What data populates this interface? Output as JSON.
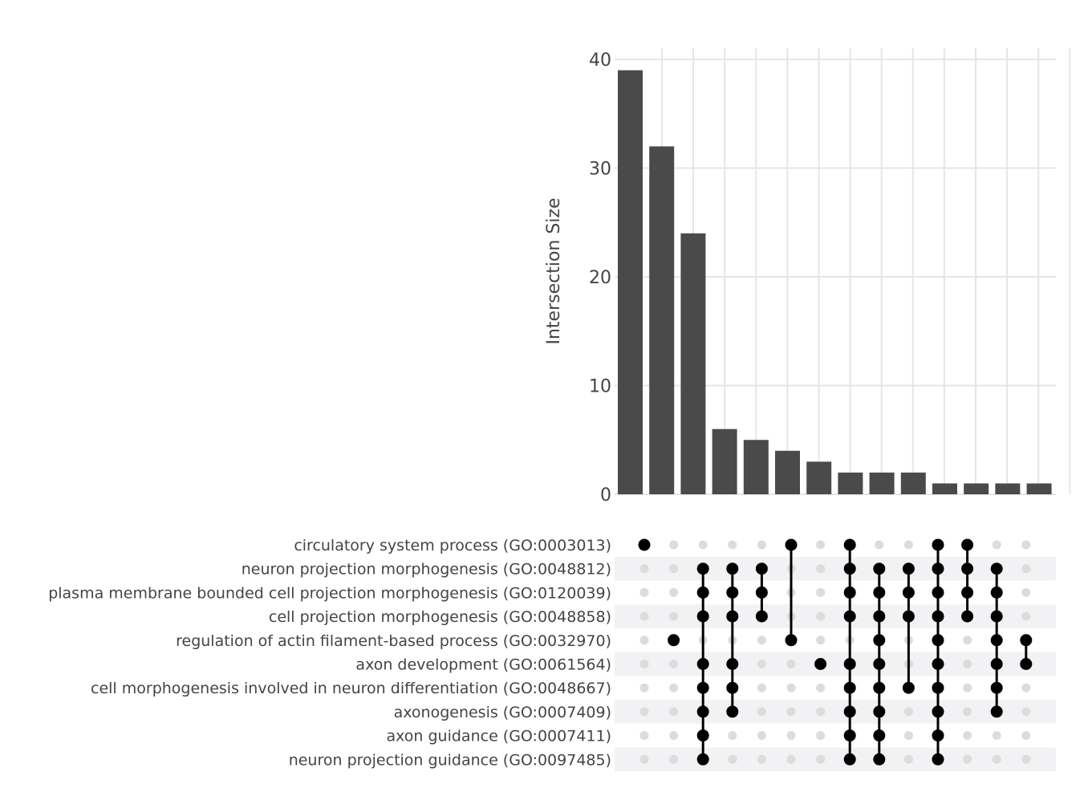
{
  "chart_data": {
    "type": "bar",
    "subtype": "upset",
    "title": "",
    "xlabel": "",
    "ylabel": "Intersection Size",
    "ylim": [
      0,
      40
    ],
    "yticks": [
      "0",
      "10",
      "20",
      "30",
      "40"
    ],
    "grid": true,
    "sets": [
      "circulatory system process (GO:0003013)",
      "neuron projection morphogenesis (GO:0048812)",
      "plasma membrane bounded cell projection morphogenesis (GO:0120039)",
      "cell projection morphogenesis (GO:0048858)",
      "regulation of actin filament-based process (GO:0032970)",
      "axon development (GO:0061564)",
      "cell morphogenesis involved in neuron differentiation (GO:0048667)",
      "axonogenesis (GO:0007409)",
      "axon guidance (GO:0007411)",
      "neuron projection guidance (GO:0097485)"
    ],
    "values": [
      39,
      32,
      24,
      6,
      5,
      4,
      3,
      2,
      2,
      2,
      1,
      1,
      1,
      1
    ],
    "intersections": [
      [
        0
      ],
      [
        4
      ],
      [
        1,
        2,
        3,
        5,
        6,
        7,
        8,
        9
      ],
      [
        1,
        2,
        3,
        5,
        6,
        7
      ],
      [
        1,
        2,
        3
      ],
      [
        0,
        4
      ],
      [
        5
      ],
      [
        0,
        1,
        2,
        3,
        5,
        6,
        7,
        8,
        9
      ],
      [
        1,
        2,
        3,
        4,
        5,
        6,
        7,
        8,
        9
      ],
      [
        1,
        2,
        3,
        6
      ],
      [
        0,
        1,
        2,
        3,
        4,
        5,
        6,
        7,
        8,
        9
      ],
      [
        0,
        1,
        2,
        3
      ],
      [
        1,
        2,
        3,
        4,
        5,
        6,
        7
      ],
      [
        4,
        5
      ]
    ]
  }
}
